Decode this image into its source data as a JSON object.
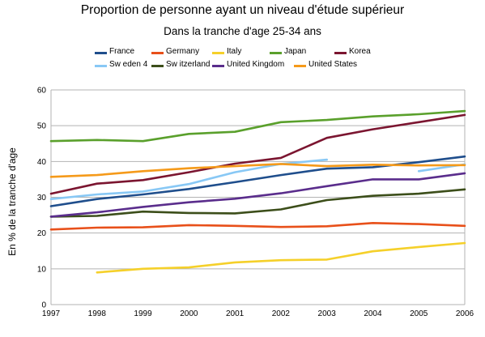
{
  "chart_data": {
    "type": "line",
    "title": "Proportion de personne ayant un niveau d'étude supérieur",
    "subtitle": "Dans la tranche d'age 25-34 ans",
    "xlabel": "",
    "ylabel": "En % de la tranche d'age",
    "ylim": [
      0,
      60
    ],
    "yticks": [
      "0",
      "10",
      "20",
      "30",
      "40",
      "50",
      "60"
    ],
    "grid": true,
    "legend": "top",
    "categories": [
      "1997",
      "1998",
      "1999",
      "2000",
      "2001",
      "2002",
      "2003",
      "2004",
      "2005",
      "2006"
    ],
    "series": [
      {
        "name": "France",
        "color": "#1f4e8c",
        "values": [
          27.5,
          29.5,
          30.8,
          32.3,
          34.2,
          36.2,
          38.0,
          38.4,
          39.8,
          41.4
        ]
      },
      {
        "name": "Germany",
        "color": "#e8501a",
        "values": [
          21.0,
          21.5,
          21.6,
          22.2,
          22.0,
          21.7,
          21.9,
          22.8,
          22.5,
          22.0
        ]
      },
      {
        "name": "Italy",
        "color": "#f5d02a",
        "values": [
          null,
          9.0,
          10.0,
          10.4,
          11.8,
          12.4,
          12.6,
          14.9,
          16.1,
          17.2
        ]
      },
      {
        "name": "Japan",
        "color": "#5aa02c",
        "values": [
          45.7,
          46.0,
          45.7,
          47.7,
          48.3,
          51.0,
          51.6,
          52.6,
          53.2,
          54.1
        ]
      },
      {
        "name": "Korea",
        "color": "#7b1530",
        "values": [
          31.0,
          33.8,
          34.8,
          37.0,
          39.4,
          41.0,
          46.6,
          49.0,
          51.0,
          53.0
        ]
      },
      {
        "name": "Sw eden 4",
        "color": "#88c8f5",
        "values": [
          29.5,
          30.8,
          31.6,
          33.7,
          37.0,
          39.3,
          40.5,
          null,
          37.3,
          39.2
        ]
      },
      {
        "name": "Sw itzerland",
        "color": "#3c4e1a",
        "values": [
          24.6,
          24.8,
          26.0,
          25.6,
          25.5,
          26.6,
          29.2,
          30.4,
          31.0,
          32.2
        ]
      },
      {
        "name": "United Kingdom",
        "color": "#5a2d8c",
        "values": [
          24.6,
          25.8,
          27.3,
          28.6,
          29.6,
          31.1,
          33.1,
          35.0,
          35.0,
          36.7
        ]
      },
      {
        "name": "United States",
        "color": "#f59a1a",
        "values": [
          35.7,
          36.2,
          37.3,
          38.1,
          38.7,
          39.3,
          38.7,
          39.1,
          38.9,
          39.0
        ]
      }
    ]
  }
}
